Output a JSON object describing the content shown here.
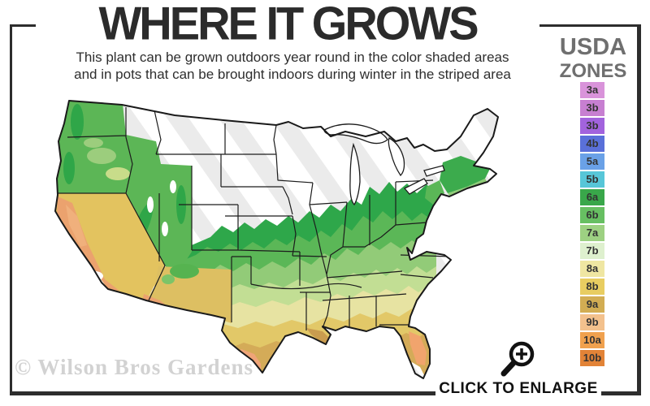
{
  "frame": {
    "border_color": "#2d2d2d"
  },
  "header": {
    "title": "WHERE IT GROWS",
    "subtitle_line1": "This plant can be grown outdoors year round in the color shaded areas",
    "subtitle_line2": "and in pots that can be brought indoors during winter in the striped area"
  },
  "legend": {
    "title_line1": "USDA",
    "title_line2": "ZONES",
    "zones": [
      {
        "label": "3a",
        "color": "#d993da"
      },
      {
        "label": "3b",
        "color": "#c77fd1"
      },
      {
        "label": "3b",
        "color": "#a263dd"
      },
      {
        "label": "4b",
        "color": "#5a70d9"
      },
      {
        "label": "5a",
        "color": "#6aa1e7"
      },
      {
        "label": "5b",
        "color": "#57c6d8"
      },
      {
        "label": "6a",
        "color": "#39a74a"
      },
      {
        "label": "6b",
        "color": "#67bf62"
      },
      {
        "label": "7a",
        "color": "#9dd182"
      },
      {
        "label": "7b",
        "color": "#def0ce"
      },
      {
        "label": "8a",
        "color": "#efe6a2"
      },
      {
        "label": "8b",
        "color": "#e8cd61"
      },
      {
        "label": "9a",
        "color": "#d2ad53"
      },
      {
        "label": "9b",
        "color": "#f3c18d"
      },
      {
        "label": "10a",
        "color": "#f0a14e"
      },
      {
        "label": "10b",
        "color": "#e28337"
      }
    ]
  },
  "map": {
    "region": "contiguous United States hardiness zone map",
    "color_shaded_meaning": "grown outdoors year round",
    "striped_meaning": "pots brought indoors during winter",
    "band_colors": [
      "#2ea74a",
      "#5bb757",
      "#92cb78",
      "#c2de94",
      "#e7e3a2",
      "#e2c868",
      "#d4ab58",
      "#efa478"
    ]
  },
  "watermark": "© Wilson Bros Gardens",
  "footer": {
    "enlarge_label": "CLICK TO ENLARGE"
  },
  "icons": {
    "magnifier": "magnifier-plus-icon"
  }
}
